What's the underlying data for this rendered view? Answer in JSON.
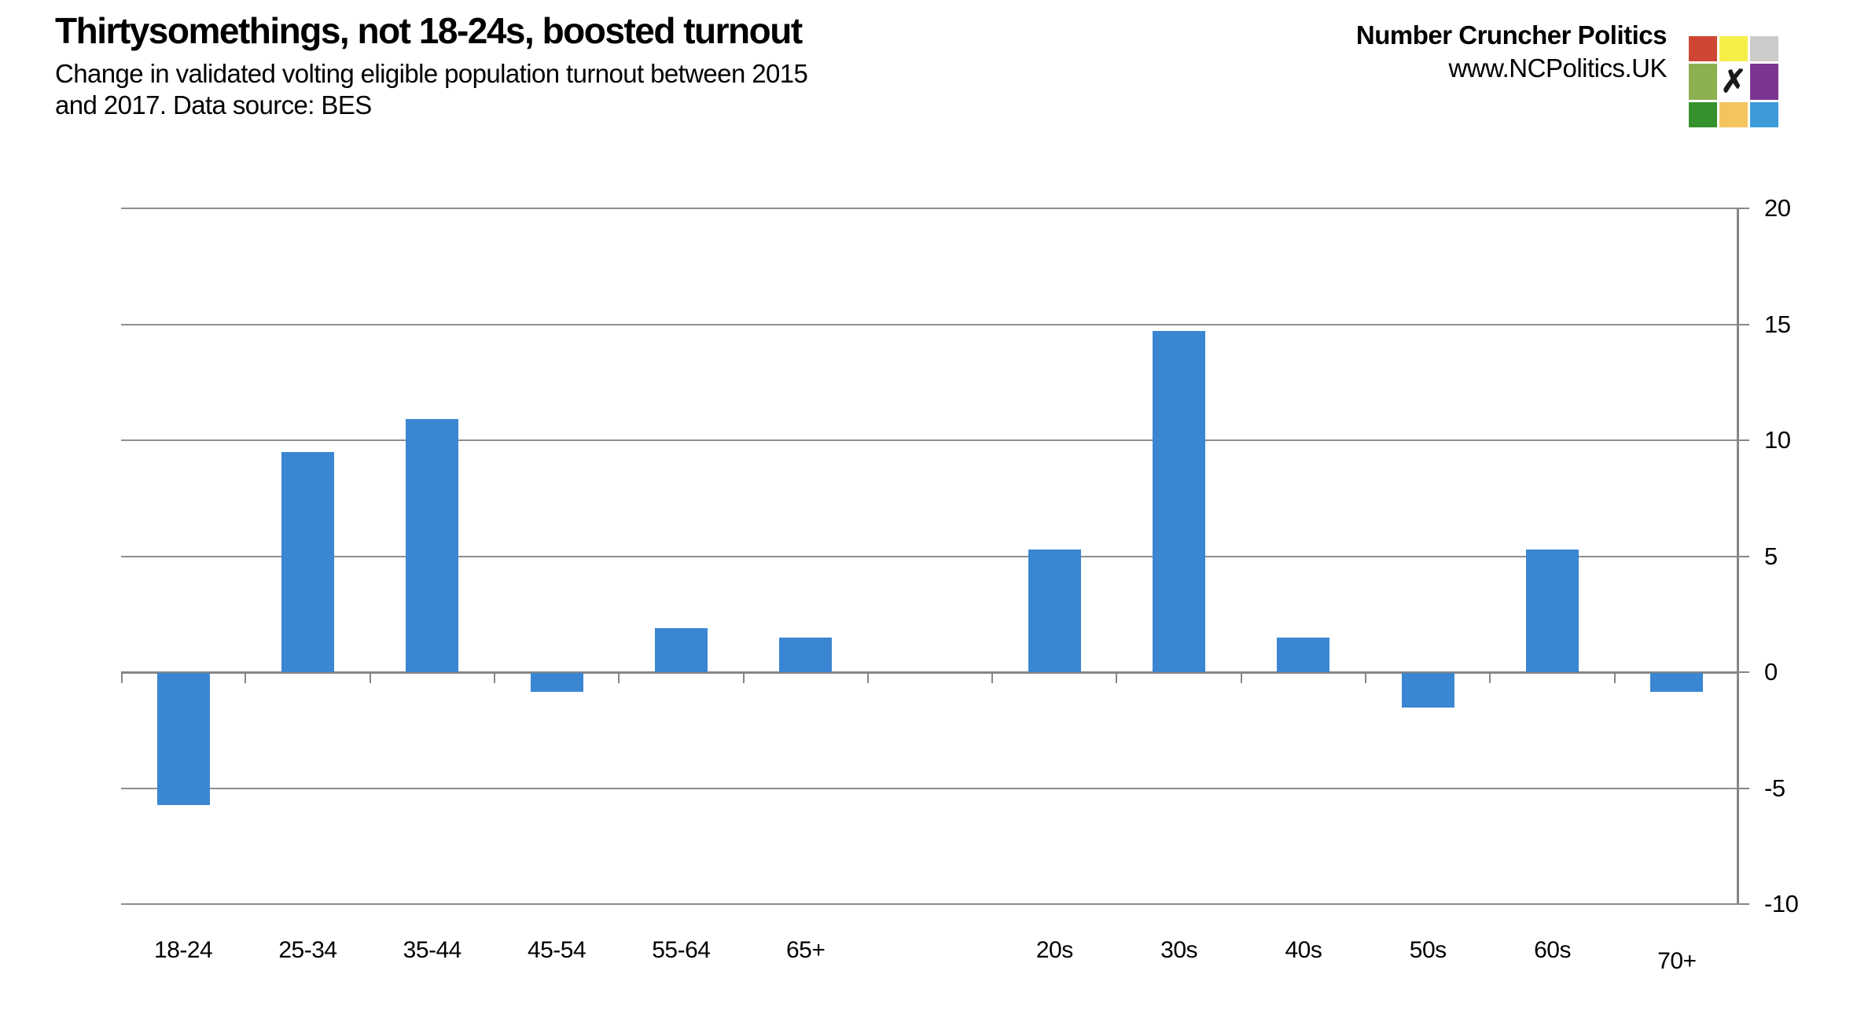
{
  "title": "Thirtysomethings, not 18-24s, boosted turnout",
  "subtitle_line1": "Change in validated volting eligible population turnout between 2015",
  "subtitle_line2": "and 2017. Data source: BES",
  "brand": {
    "name": "Number Cruncher Politics",
    "url": "www.NCPolitics.UK"
  },
  "logo": {
    "x_mark": "✗",
    "cells": [
      "#cf4734",
      "#f7ef49",
      "#cbcbca",
      "#8cb04f",
      "X",
      "#7c3590",
      "#35912c",
      "#f4c45e",
      "#3d9bd9"
    ]
  },
  "colors": {
    "bar": "#3a86d2",
    "gridline": "#8e8e8e",
    "axis": "#868686",
    "text": "#000000"
  },
  "chart_data": {
    "type": "bar",
    "categories": [
      "18-24",
      "25-34",
      "35-44",
      "45-54",
      "55-64",
      "65+",
      "20s",
      "30s",
      "40s",
      "50s",
      "60s",
      "70+"
    ],
    "values": [
      -5.7,
      9.5,
      10.9,
      -0.8,
      1.9,
      1.5,
      5.3,
      14.7,
      1.5,
      -1.5,
      5.3,
      -0.8
    ],
    "gap_slot": 6,
    "total_slots": 13,
    "yticks": [
      20,
      15,
      10,
      5,
      0,
      -5,
      -10
    ],
    "ylim": [
      -10,
      20
    ],
    "grid": true,
    "legend": "none",
    "value_axis_side": "right",
    "xlabel": "",
    "ylabel": "",
    "xlabel_dy": [
      0,
      0,
      0,
      0,
      0,
      0,
      0,
      0,
      0,
      0,
      0,
      14
    ]
  }
}
